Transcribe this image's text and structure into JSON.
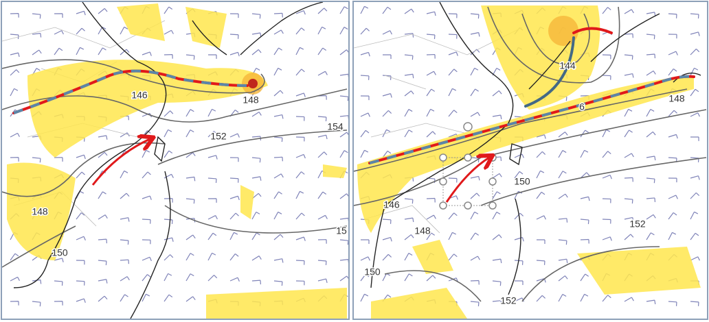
{
  "panels": [
    {
      "contour_labels": [
        "146",
        "148",
        "154",
        "152",
        "148",
        "150",
        "15"
      ]
    },
    {
      "contour_labels": [
        "144",
        "6",
        "148",
        "150",
        "146",
        "148",
        "152",
        "150",
        "152"
      ]
    }
  ]
}
